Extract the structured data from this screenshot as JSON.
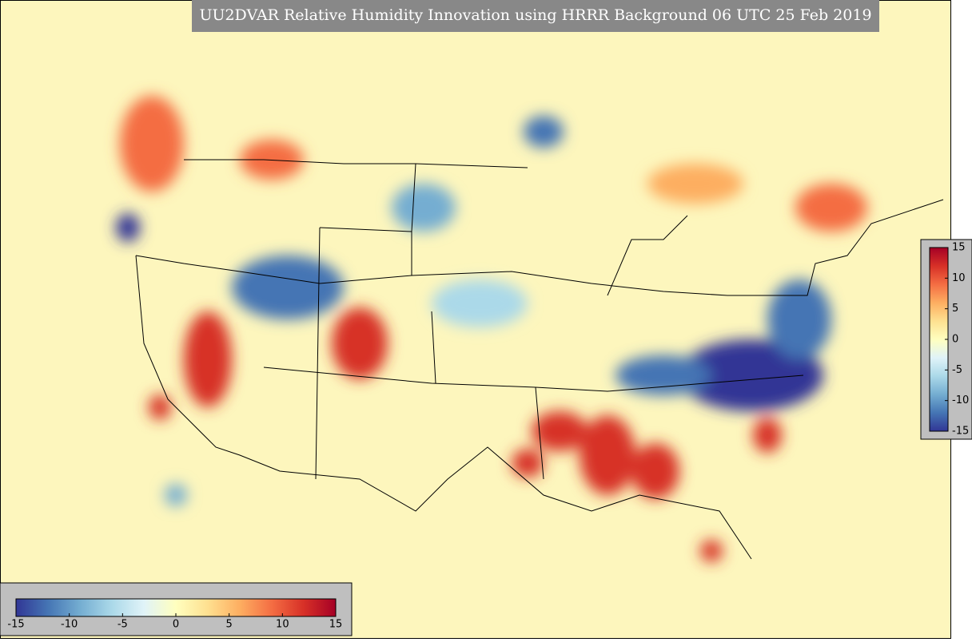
{
  "map": {
    "title": "UU2DVAR Relative Humidity Innovation using HRRR Background 06 UTC 25 Feb 2019",
    "colorbars": [
      {
        "orientation": "vertical",
        "lim": [
          -15,
          15
        ],
        "ticks": [
          15,
          10,
          5,
          0,
          -5,
          -10,
          -15
        ]
      },
      {
        "orientation": "horizontal",
        "lim": [
          -15,
          15
        ],
        "ticks": [
          -15,
          -10,
          -5,
          0,
          5,
          10,
          15
        ]
      }
    ]
  }
}
